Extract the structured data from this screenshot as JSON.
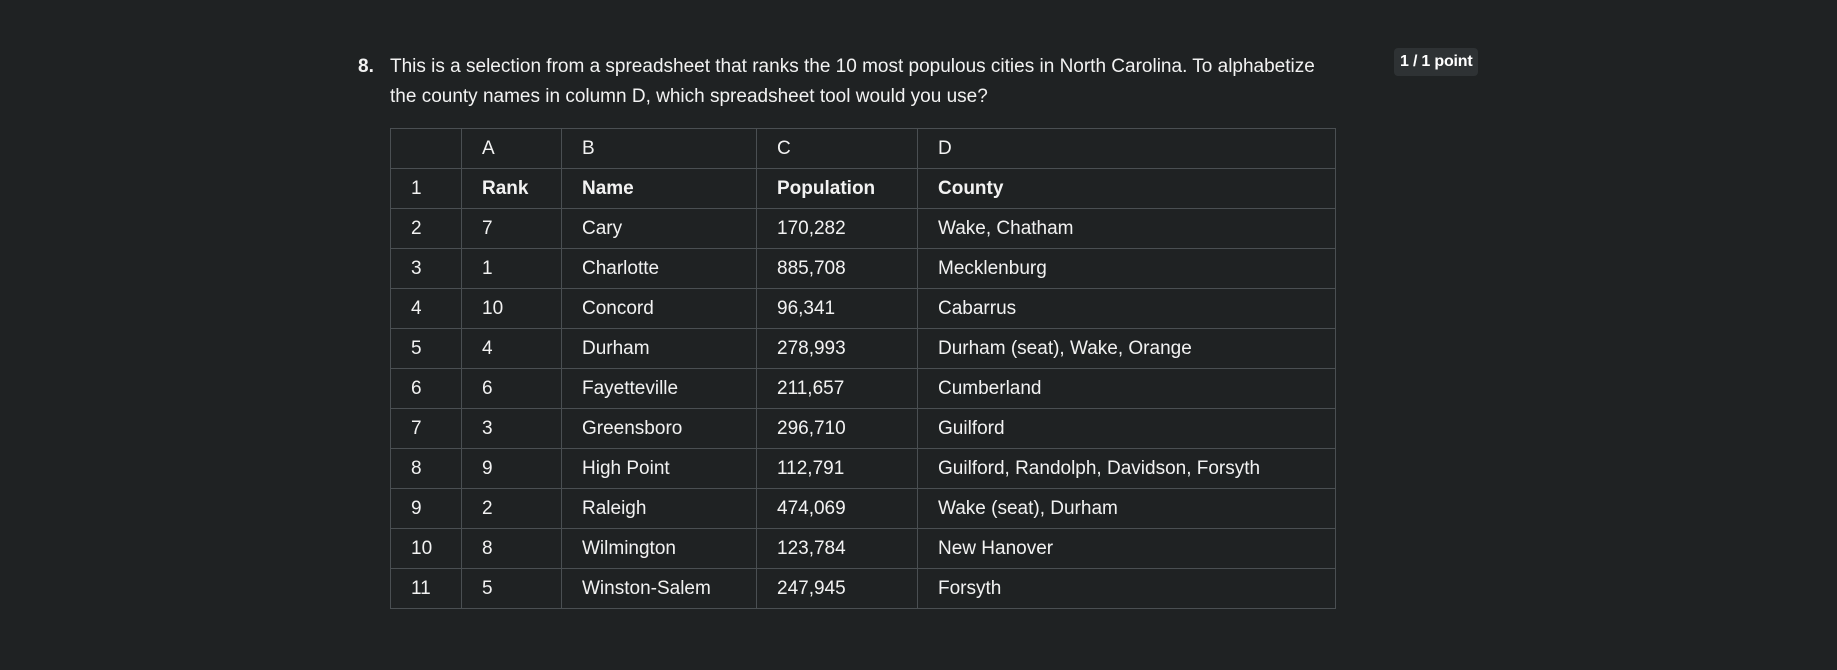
{
  "question": {
    "number": "8.",
    "text": "This is a selection from a spreadsheet that ranks the 10 most populous cities in North Carolina. To alphabetize the county names in column D, which spreadsheet tool would you use?",
    "points": "1 / 1 point"
  },
  "table": {
    "columns": [
      "",
      "A",
      "B",
      "C",
      "D"
    ],
    "header": {
      "row": "1",
      "cells": [
        "Rank",
        "Name",
        "Population",
        "County"
      ]
    },
    "rows": [
      {
        "row": "2",
        "cells": [
          "7",
          "Cary",
          "170,282",
          "Wake, Chatham"
        ]
      },
      {
        "row": "3",
        "cells": [
          "1",
          "Charlotte",
          "885,708",
          "Mecklenburg"
        ]
      },
      {
        "row": "4",
        "cells": [
          "10",
          "Concord",
          "96,341",
          "Cabarrus"
        ]
      },
      {
        "row": "5",
        "cells": [
          "4",
          "Durham",
          "278,993",
          "Durham (seat), Wake, Orange"
        ]
      },
      {
        "row": "6",
        "cells": [
          "6",
          "Fayetteville",
          "211,657",
          "Cumberland"
        ]
      },
      {
        "row": "7",
        "cells": [
          "3",
          "Greensboro",
          "296,710",
          "Guilford"
        ]
      },
      {
        "row": "8",
        "cells": [
          "9",
          "High Point",
          "112,791",
          "Guilford, Randolph, Davidson, Forsyth"
        ]
      },
      {
        "row": "9",
        "cells": [
          "2",
          "Raleigh",
          "474,069",
          "Wake (seat), Durham"
        ]
      },
      {
        "row": "10",
        "cells": [
          "8",
          "Wilmington",
          "123,784",
          "New Hanover"
        ]
      },
      {
        "row": "11",
        "cells": [
          "5",
          "Winston-Salem",
          "247,945",
          "Forsyth"
        ]
      }
    ]
  }
}
